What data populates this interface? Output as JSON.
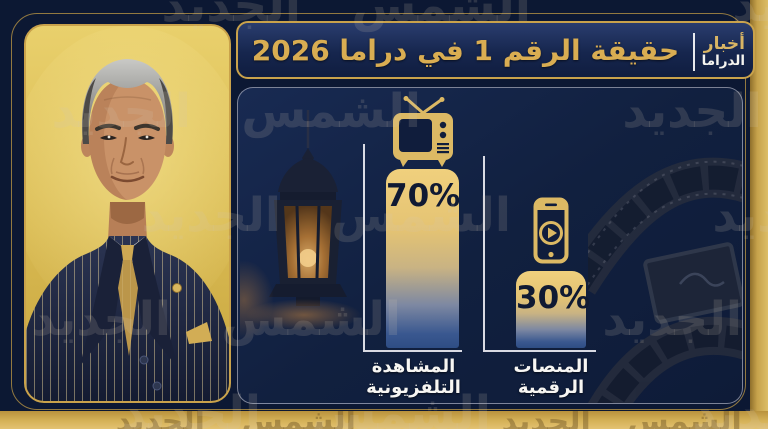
{
  "brand": {
    "line1": "أخبار",
    "line2": "الدراما"
  },
  "header": {
    "title": "حقيقة الرقم 1 في دراما 2026"
  },
  "watermark": {
    "text": "الشمس الجديد"
  },
  "chart_data": {
    "type": "bar",
    "title": "حقيقة الرقم 1 في دراما 2026",
    "categories": [
      "المشاهدة التلفزيونية",
      "المنصات الرقمية"
    ],
    "values": [
      70,
      30
    ],
    "value_labels": [
      "70%",
      "30%"
    ],
    "ylim": [
      0,
      100
    ],
    "grid": false,
    "legend": "none",
    "bars": [
      {
        "icon": "tv-icon",
        "value": 70,
        "value_label": "70%",
        "label_line1": "المشاهدة",
        "label_line2": "التلفزيونية"
      },
      {
        "icon": "smartphone-play-icon",
        "value": 30,
        "value_label": "30%",
        "label_line1": "المنصات",
        "label_line2": "الرقمية"
      }
    ]
  },
  "colors": {
    "background_navy": "#0c1833",
    "panel_navy": "#11203f",
    "gold_border": "#c9a24b",
    "title_gold": "#d9ad52",
    "bar_gold_top": "#f0d07d",
    "bar_blue_bottom": "#2e4d84",
    "value_text": "#101a33",
    "label_white": "#f7f6f3"
  }
}
